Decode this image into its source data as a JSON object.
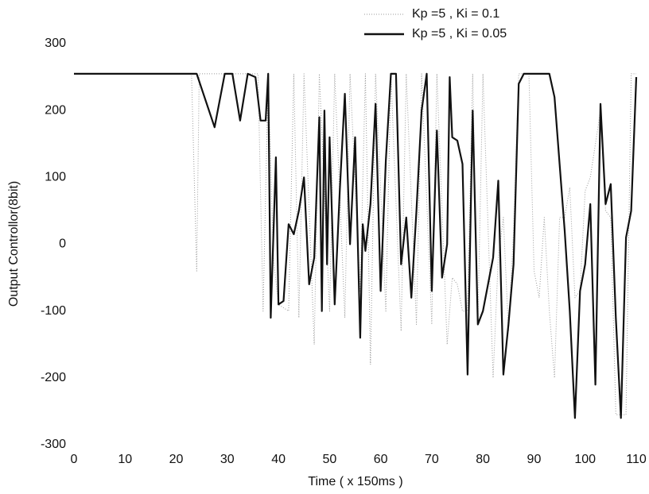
{
  "chart_data": {
    "type": "line",
    "x_label": "Time ( x 150ms )",
    "y_label": "Output Controllor(8bit)",
    "xlim": [
      0,
      110
    ],
    "ylim": [
      -300,
      300
    ],
    "xticks": [
      0,
      10,
      20,
      30,
      40,
      50,
      60,
      70,
      80,
      90,
      100,
      110
    ],
    "yticks": [
      -300,
      -200,
      -100,
      0,
      100,
      200,
      300
    ],
    "legend": "top-right",
    "series": [
      {
        "name": "Kp =5 , Ki = 0.1",
        "color": "#9a9a9a",
        "dash": "dotted",
        "x": [
          0,
          23,
          24,
          24.5,
          28,
          36,
          37,
          38,
          39,
          40,
          42,
          43,
          44,
          45,
          47,
          48,
          50,
          51,
          53,
          54,
          56,
          57,
          58,
          59,
          61,
          62,
          64,
          65,
          67,
          68,
          70,
          71,
          73,
          74,
          75,
          76,
          77,
          78,
          79,
          80,
          82,
          83,
          84,
          85,
          86,
          87,
          89,
          90,
          91,
          92,
          93,
          94,
          95,
          96,
          97,
          98,
          99,
          100,
          101,
          102,
          103,
          104,
          105,
          106,
          108,
          109,
          110
        ],
        "values": [
          255,
          255,
          -40,
          255,
          255,
          255,
          -100,
          255,
          -20,
          -90,
          -100,
          255,
          -110,
          255,
          -150,
          255,
          -100,
          255,
          -110,
          255,
          -70,
          255,
          -180,
          255,
          -100,
          255,
          -130,
          255,
          -120,
          255,
          -120,
          255,
          -150,
          -50,
          -60,
          -100,
          -100,
          255,
          -120,
          255,
          -200,
          -20,
          40,
          -130,
          20,
          255,
          255,
          -40,
          -80,
          40,
          -100,
          -200,
          40,
          40,
          85,
          -80,
          -70,
          80,
          100,
          150,
          200,
          50,
          40,
          -255,
          -255,
          255,
          255
        ]
      },
      {
        "name": "Kp =5 , Ki = 0.05",
        "color": "#111111",
        "dash": "solid",
        "x": [
          0,
          24,
          27.5,
          29.5,
          31,
          32.5,
          34,
          35.5,
          36.5,
          37.5,
          38,
          38.5,
          39.5,
          40,
          41,
          42,
          43,
          44,
          45,
          46,
          47,
          48,
          48.5,
          49,
          49.5,
          50,
          51,
          52,
          53,
          54,
          55,
          56,
          56.5,
          57,
          58,
          59,
          60,
          61,
          62,
          63,
          64,
          65,
          66,
          67,
          68,
          69,
          70,
          71,
          72,
          73,
          73.5,
          74,
          75,
          76,
          77,
          78,
          79,
          80,
          81,
          82,
          83,
          84,
          85,
          86,
          87,
          88,
          93,
          94,
          95,
          96,
          97,
          98,
          99,
          100,
          101,
          102,
          103,
          104,
          105,
          106,
          107,
          108,
          109,
          110
        ],
        "values": [
          255,
          255,
          175,
          255,
          255,
          185,
          255,
          250,
          185,
          185,
          255,
          -110,
          130,
          -90,
          -85,
          30,
          15,
          50,
          100,
          -60,
          -20,
          190,
          -100,
          200,
          -30,
          160,
          -90,
          80,
          225,
          0,
          160,
          -140,
          30,
          -10,
          60,
          210,
          -70,
          125,
          255,
          255,
          -30,
          40,
          -80,
          50,
          200,
          255,
          -70,
          170,
          -50,
          0,
          250,
          160,
          155,
          120,
          -195,
          200,
          -120,
          -100,
          -60,
          -20,
          95,
          -195,
          -120,
          -30,
          240,
          255,
          255,
          220,
          120,
          20,
          -100,
          -260,
          -70,
          -30,
          60,
          -210,
          210,
          60,
          90,
          -110,
          -260,
          10,
          50,
          250
        ]
      }
    ]
  }
}
